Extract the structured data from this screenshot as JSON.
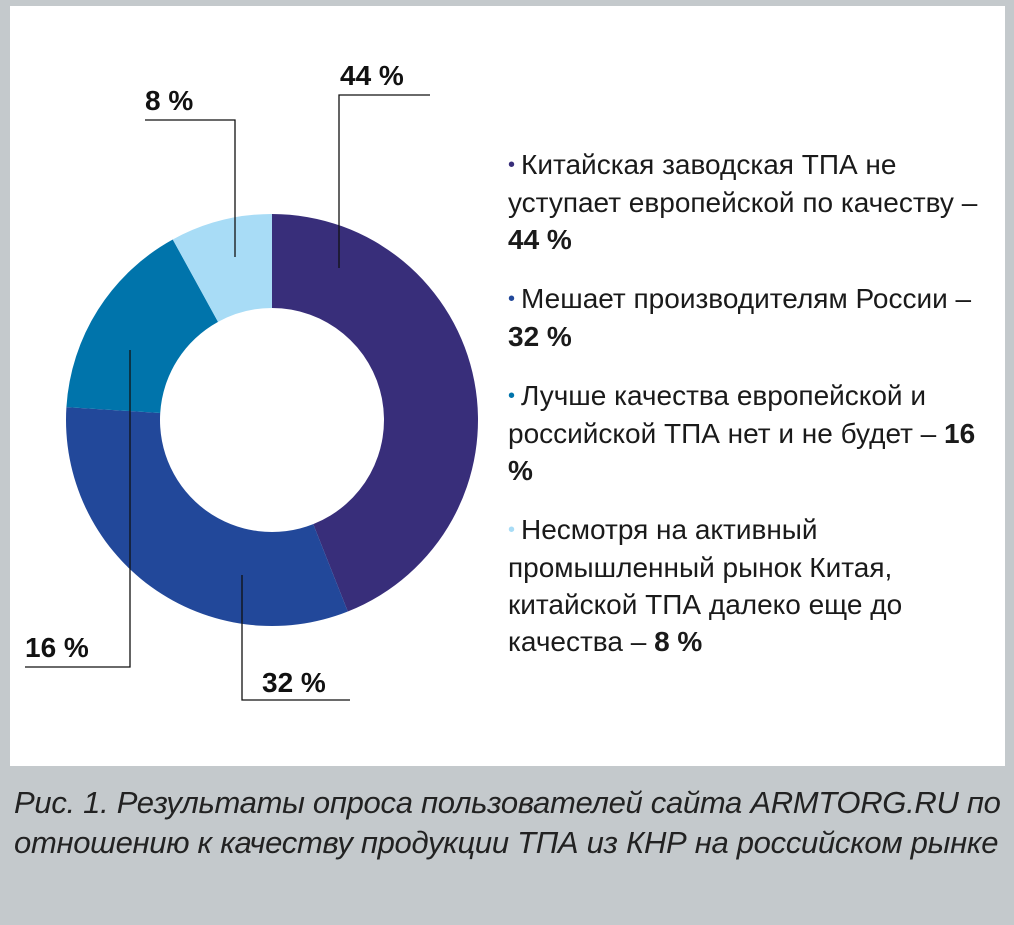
{
  "chart_data": {
    "type": "pie",
    "donut": true,
    "categories": [
      "Китайская заводская ТПА не уступает европейской по качеству",
      "Мешает производителям России",
      "Лучше качества европейской и российской ТПА нет и не будет",
      "Несмотря на активный промышленный рынок Китая, китайской ТПА далеко еще до качества"
    ],
    "values": [
      44,
      32,
      16,
      8
    ],
    "data_labels": [
      "44 %",
      "32 %",
      "16 %",
      "8 %"
    ],
    "colors": [
      "#382e7a",
      "#22489a",
      "#0074ab",
      "#a8dcf6"
    ],
    "legend_placement": "right",
    "legend": [
      {
        "text": "Китайская заводская ТПА не уступает европейской по качеству – ",
        "value": "44 %"
      },
      {
        "text": "Мешает производителям России – ",
        "value": "32 %"
      },
      {
        "text": "Лучше качества европейской и российской ТПА нет и не будет – ",
        "value": "16 %"
      },
      {
        "text": "Несмотря на активный промышленный рынок Китая, китайской ТПА далеко еще до качества – ",
        "value": "8 %"
      }
    ],
    "bullet": "•"
  },
  "caption": "Рис. 1. Результаты опроса пользователей сайта ARMTORG.RU по отношению к качеству продукции ТПА из КНР на российском рынке"
}
